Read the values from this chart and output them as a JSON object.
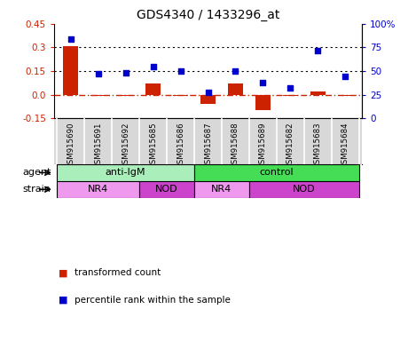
{
  "title": "GDS4340 / 1433296_at",
  "samples": [
    "GSM915690",
    "GSM915691",
    "GSM915692",
    "GSM915685",
    "GSM915686",
    "GSM915687",
    "GSM915688",
    "GSM915689",
    "GSM915682",
    "GSM915683",
    "GSM915684"
  ],
  "transformed_count": [
    0.31,
    -0.01,
    -0.01,
    0.07,
    -0.01,
    -0.06,
    0.07,
    -0.1,
    -0.01,
    0.02,
    -0.01
  ],
  "percentile_rank": [
    84,
    47,
    48,
    55,
    50,
    27,
    50,
    38,
    32,
    72,
    44
  ],
  "ylim_left": [
    -0.15,
    0.45
  ],
  "ylim_right": [
    0,
    100
  ],
  "yticks_left": [
    -0.15,
    0.0,
    0.15,
    0.3,
    0.45
  ],
  "yticks_right": [
    0,
    25,
    50,
    75,
    100
  ],
  "ytick_labels_right": [
    "0",
    "25",
    "50",
    "75",
    "100%"
  ],
  "bar_color": "#cc2200",
  "scatter_color": "#0000cc",
  "agent_groups": [
    {
      "label": "anti-IgM",
      "start": 0,
      "end": 5,
      "color": "#aaeebb"
    },
    {
      "label": "control",
      "start": 5,
      "end": 11,
      "color": "#44dd55"
    }
  ],
  "strain_groups": [
    {
      "label": "NR4",
      "start": 0,
      "end": 3,
      "color": "#ee99ee"
    },
    {
      "label": "NOD",
      "start": 3,
      "end": 5,
      "color": "#cc44cc"
    },
    {
      "label": "NR4",
      "start": 5,
      "end": 7,
      "color": "#ee99ee"
    },
    {
      "label": "NOD",
      "start": 7,
      "end": 11,
      "color": "#cc44cc"
    }
  ],
  "legend_red": "transformed count",
  "legend_blue": "percentile rank within the sample",
  "sample_bg": "#d8d8d8",
  "plot_bg": "#ffffff"
}
